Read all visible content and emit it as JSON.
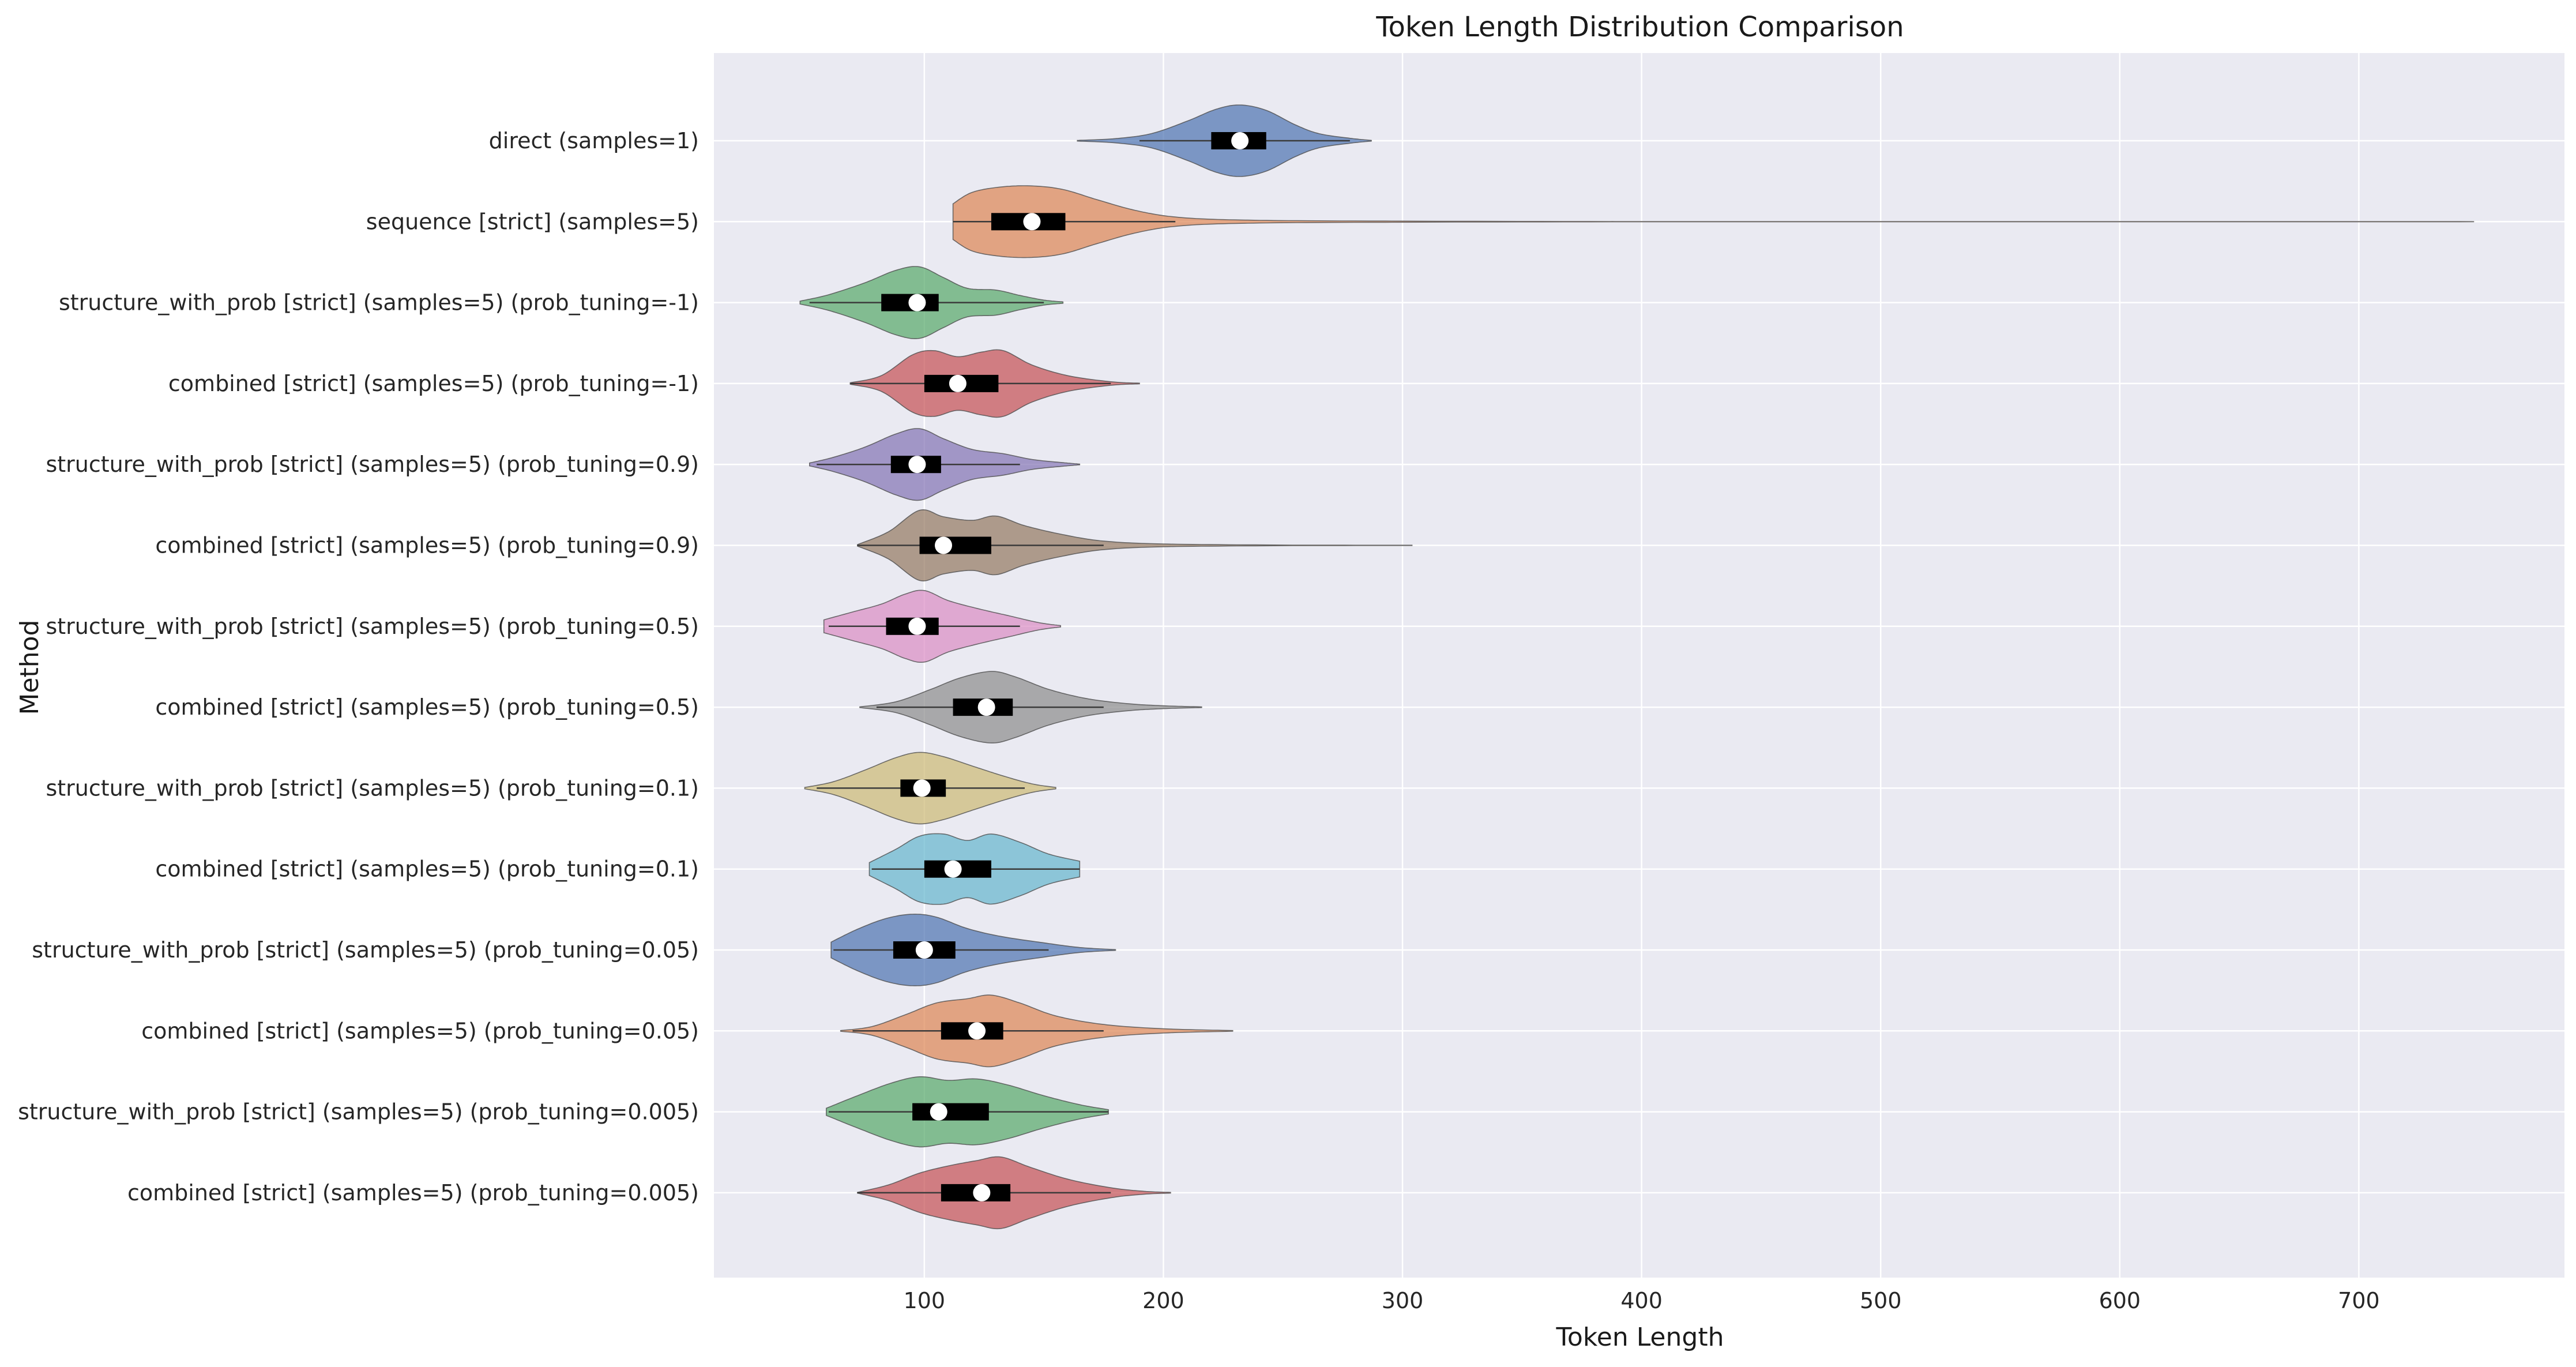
{
  "chart_data": {
    "type": "violin",
    "title": "Token Length Distribution Comparison",
    "xlabel": "Token Length",
    "ylabel": "Method",
    "xlim": [
      12,
      786
    ],
    "xticks": [
      100,
      200,
      300,
      400,
      500,
      600,
      700
    ],
    "grid": true,
    "orientation": "horizontal",
    "colors": {
      "background": "#eaeaf2",
      "grid": "#ffffff",
      "box": "#000000",
      "median": "#ffffff",
      "palette": [
        "#4c72b0",
        "#dd8452",
        "#55a868",
        "#c44e52",
        "#8172b3",
        "#937860",
        "#da8bc3",
        "#8c8c8c",
        "#ccb974",
        "#64b5cd"
      ]
    },
    "series": [
      {
        "name": "direct (samples=1)",
        "min": 164,
        "max": 287,
        "q1": 220,
        "median": 232,
        "q3": 243,
        "whisker_low": 190,
        "whisker_high": 278,
        "density": [
          [
            164,
            0.01
          ],
          [
            180,
            0.06
          ],
          [
            195,
            0.2
          ],
          [
            210,
            0.55
          ],
          [
            222,
            0.88
          ],
          [
            232,
            1.0
          ],
          [
            243,
            0.85
          ],
          [
            255,
            0.45
          ],
          [
            265,
            0.2
          ],
          [
            278,
            0.07
          ],
          [
            287,
            0.01
          ]
        ]
      },
      {
        "name": "sequence [strict] (samples=5)",
        "min": 112,
        "max": 748,
        "q1": 128,
        "median": 145,
        "q3": 159,
        "whisker_low": 112,
        "whisker_high": 205,
        "density": [
          [
            112,
            0.5
          ],
          [
            120,
            0.82
          ],
          [
            132,
            0.97
          ],
          [
            145,
            1.0
          ],
          [
            158,
            0.9
          ],
          [
            172,
            0.62
          ],
          [
            188,
            0.32
          ],
          [
            205,
            0.13
          ],
          [
            230,
            0.05
          ],
          [
            280,
            0.02
          ],
          [
            400,
            0.005
          ],
          [
            600,
            0.004
          ],
          [
            748,
            0.002
          ]
        ]
      },
      {
        "name": "structure_with_prob [strict] (samples=5) (prob_tuning=-1)",
        "min": 48,
        "max": 158,
        "q1": 82,
        "median": 97,
        "q3": 106,
        "whisker_low": 52,
        "whisker_high": 150,
        "density": [
          [
            48,
            0.04
          ],
          [
            60,
            0.22
          ],
          [
            75,
            0.55
          ],
          [
            88,
            0.9
          ],
          [
            98,
            1.0
          ],
          [
            108,
            0.7
          ],
          [
            118,
            0.4
          ],
          [
            130,
            0.35
          ],
          [
            140,
            0.2
          ],
          [
            150,
            0.07
          ],
          [
            158,
            0.02
          ]
        ]
      },
      {
        "name": "combined [strict] (samples=5) (prob_tuning=-1)",
        "min": 69,
        "max": 190,
        "q1": 100,
        "median": 114,
        "q3": 131,
        "whisker_low": 69,
        "whisker_high": 178,
        "density": [
          [
            69,
            0.02
          ],
          [
            82,
            0.22
          ],
          [
            95,
            0.8
          ],
          [
            104,
            0.92
          ],
          [
            114,
            0.75
          ],
          [
            124,
            0.88
          ],
          [
            133,
            0.92
          ],
          [
            145,
            0.52
          ],
          [
            160,
            0.22
          ],
          [
            178,
            0.05
          ],
          [
            190,
            0.01
          ]
        ]
      },
      {
        "name": "structure_with_prob [strict] (samples=5) (prob_tuning=0.9)",
        "min": 52,
        "max": 165,
        "q1": 86,
        "median": 97,
        "q3": 107,
        "whisker_low": 55,
        "whisker_high": 140,
        "density": [
          [
            52,
            0.04
          ],
          [
            62,
            0.2
          ],
          [
            75,
            0.48
          ],
          [
            88,
            0.85
          ],
          [
            98,
            1.0
          ],
          [
            108,
            0.72
          ],
          [
            120,
            0.42
          ],
          [
            133,
            0.3
          ],
          [
            145,
            0.14
          ],
          [
            158,
            0.05
          ],
          [
            165,
            0.01
          ]
        ]
      },
      {
        "name": "combined [strict] (samples=5) (prob_tuning=0.9)",
        "min": 72,
        "max": 304,
        "q1": 98,
        "median": 108,
        "q3": 128,
        "whisker_low": 72,
        "whisker_high": 175,
        "density": [
          [
            72,
            0.02
          ],
          [
            85,
            0.38
          ],
          [
            98,
            0.98
          ],
          [
            108,
            0.8
          ],
          [
            120,
            0.7
          ],
          [
            130,
            0.82
          ],
          [
            142,
            0.55
          ],
          [
            158,
            0.3
          ],
          [
            175,
            0.12
          ],
          [
            200,
            0.04
          ],
          [
            250,
            0.01
          ],
          [
            304,
            0.005
          ]
        ]
      },
      {
        "name": "structure_with_prob [strict] (samples=5) (prob_tuning=0.5)",
        "min": 58,
        "max": 157,
        "q1": 84,
        "median": 97,
        "q3": 106,
        "whisker_low": 60,
        "whisker_high": 140,
        "density": [
          [
            58,
            0.18
          ],
          [
            70,
            0.4
          ],
          [
            82,
            0.62
          ],
          [
            92,
            0.9
          ],
          [
            100,
            1.0
          ],
          [
            110,
            0.72
          ],
          [
            122,
            0.5
          ],
          [
            135,
            0.3
          ],
          [
            148,
            0.1
          ],
          [
            157,
            0.02
          ]
        ]
      },
      {
        "name": "combined [strict] (samples=5) (prob_tuning=0.5)",
        "min": 73,
        "max": 216,
        "q1": 112,
        "median": 126,
        "q3": 137,
        "whisker_low": 80,
        "whisker_high": 175,
        "density": [
          [
            73,
            0.01
          ],
          [
            88,
            0.15
          ],
          [
            102,
            0.48
          ],
          [
            115,
            0.82
          ],
          [
            128,
            1.0
          ],
          [
            138,
            0.85
          ],
          [
            152,
            0.5
          ],
          [
            168,
            0.24
          ],
          [
            185,
            0.1
          ],
          [
            200,
            0.04
          ],
          [
            216,
            0.01
          ]
        ]
      },
      {
        "name": "structure_with_prob [strict] (samples=5) (prob_tuning=0.1)",
        "min": 50,
        "max": 155,
        "q1": 90,
        "median": 99,
        "q3": 109,
        "whisker_low": 55,
        "whisker_high": 142,
        "density": [
          [
            50,
            0.02
          ],
          [
            62,
            0.18
          ],
          [
            75,
            0.5
          ],
          [
            88,
            0.85
          ],
          [
            98,
            1.0
          ],
          [
            108,
            0.88
          ],
          [
            120,
            0.62
          ],
          [
            133,
            0.34
          ],
          [
            145,
            0.12
          ],
          [
            155,
            0.02
          ]
        ]
      },
      {
        "name": "combined [strict] (samples=5) (prob_tuning=0.1)",
        "min": 77,
        "max": 165,
        "q1": 100,
        "median": 112,
        "q3": 128,
        "whisker_low": 78,
        "whisker_high": 165,
        "density": [
          [
            77,
            0.18
          ],
          [
            88,
            0.55
          ],
          [
            98,
            0.92
          ],
          [
            108,
            0.98
          ],
          [
            118,
            0.8
          ],
          [
            128,
            0.98
          ],
          [
            140,
            0.75
          ],
          [
            152,
            0.42
          ],
          [
            165,
            0.22
          ]
        ]
      },
      {
        "name": "structure_with_prob [strict] (samples=5) (prob_tuning=0.05)",
        "min": 61,
        "max": 180,
        "q1": 87,
        "median": 100,
        "q3": 113,
        "whisker_low": 62,
        "whisker_high": 152,
        "density": [
          [
            61,
            0.22
          ],
          [
            72,
            0.58
          ],
          [
            84,
            0.88
          ],
          [
            95,
            1.0
          ],
          [
            105,
            0.92
          ],
          [
            118,
            0.6
          ],
          [
            132,
            0.38
          ],
          [
            150,
            0.2
          ],
          [
            165,
            0.07
          ],
          [
            180,
            0.01
          ]
        ]
      },
      {
        "name": "combined [strict] (samples=5) (prob_tuning=0.05)",
        "min": 65,
        "max": 229,
        "q1": 107,
        "median": 122,
        "q3": 133,
        "whisker_low": 70,
        "whisker_high": 175,
        "density": [
          [
            65,
            0.01
          ],
          [
            78,
            0.12
          ],
          [
            92,
            0.45
          ],
          [
            105,
            0.78
          ],
          [
            118,
            0.9
          ],
          [
            128,
            1.0
          ],
          [
            140,
            0.78
          ],
          [
            155,
            0.42
          ],
          [
            175,
            0.18
          ],
          [
            200,
            0.06
          ],
          [
            229,
            0.01
          ]
        ]
      },
      {
        "name": "structure_with_prob [strict] (samples=5) (prob_tuning=0.005)",
        "min": 59,
        "max": 177,
        "q1": 95,
        "median": 106,
        "q3": 127,
        "whisker_low": 60,
        "whisker_high": 177,
        "density": [
          [
            59,
            0.1
          ],
          [
            72,
            0.45
          ],
          [
            86,
            0.8
          ],
          [
            98,
            0.98
          ],
          [
            110,
            0.88
          ],
          [
            122,
            0.92
          ],
          [
            135,
            0.75
          ],
          [
            150,
            0.45
          ],
          [
            165,
            0.2
          ],
          [
            177,
            0.06
          ]
        ]
      },
      {
        "name": "combined [strict] (samples=5) (prob_tuning=0.005)",
        "min": 72,
        "max": 203,
        "q1": 107,
        "median": 124,
        "q3": 136,
        "whisker_low": 72,
        "whisker_high": 178,
        "density": [
          [
            72,
            0.01
          ],
          [
            85,
            0.22
          ],
          [
            98,
            0.55
          ],
          [
            110,
            0.75
          ],
          [
            122,
            0.9
          ],
          [
            132,
            1.0
          ],
          [
            144,
            0.72
          ],
          [
            160,
            0.38
          ],
          [
            178,
            0.14
          ],
          [
            192,
            0.04
          ],
          [
            203,
            0.01
          ]
        ]
      }
    ]
  }
}
